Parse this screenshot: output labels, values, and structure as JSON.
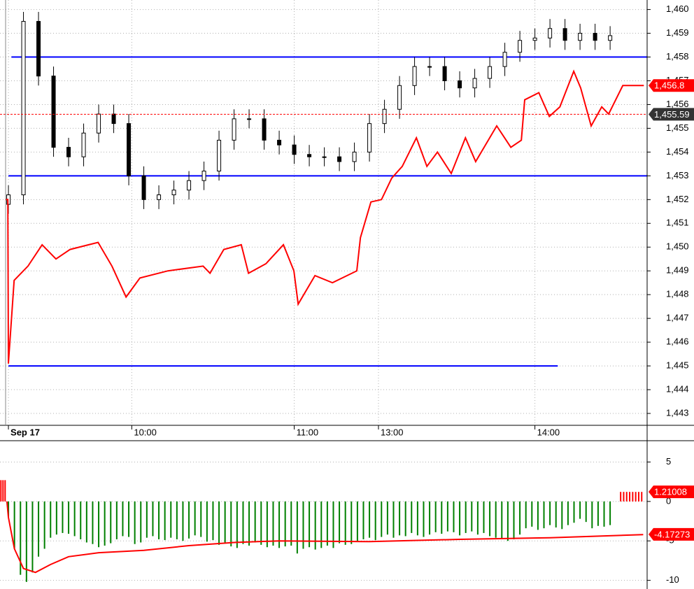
{
  "chart_data": [
    {
      "type": "candlestick",
      "x": [
        0,
        5,
        10,
        15,
        20,
        25,
        30,
        35,
        40,
        45,
        50,
        55,
        60,
        65,
        70,
        75,
        80,
        85,
        90,
        95,
        100,
        105,
        110,
        115,
        120,
        125,
        130,
        135,
        140,
        145,
        150,
        155,
        160,
        165,
        170,
        175,
        180,
        185,
        190,
        195,
        200
      ],
      "open": [
        1451.8,
        1452.2,
        1459.5,
        1457.2,
        1454.2,
        1453.8,
        1454.8,
        1455.6,
        1455.2,
        1453.0,
        1452.0,
        1452.2,
        1452.4,
        1452.8,
        1453.2,
        1454.5,
        1455.4,
        1455.4,
        1454.5,
        1454.3,
        1453.9,
        1453.8,
        1453.8,
        1453.6,
        1454.0,
        1455.2,
        1455.8,
        1456.8,
        1457.6,
        1457.6,
        1457.0,
        1456.7,
        1457.1,
        1457.6,
        1458.2,
        1458.7,
        1458.8,
        1459.2,
        1458.7,
        1459.0,
        1458.7
      ],
      "high": [
        1452.6,
        1459.9,
        1459.9,
        1457.6,
        1454.6,
        1455.2,
        1456.0,
        1456.0,
        1455.6,
        1453.4,
        1452.6,
        1452.8,
        1453.2,
        1453.6,
        1454.9,
        1455.8,
        1455.8,
        1455.8,
        1454.9,
        1454.7,
        1454.3,
        1454.2,
        1454.2,
        1454.4,
        1455.6,
        1456.2,
        1457.2,
        1458.0,
        1458.0,
        1458.0,
        1457.4,
        1457.5,
        1458.0,
        1458.6,
        1459.1,
        1459.2,
        1459.6,
        1459.6,
        1459.4,
        1459.4,
        1459.3
      ],
      "low": [
        1451.4,
        1451.8,
        1456.8,
        1453.8,
        1453.4,
        1453.4,
        1454.4,
        1454.8,
        1452.6,
        1451.6,
        1451.6,
        1451.8,
        1452.0,
        1452.4,
        1452.8,
        1454.1,
        1455.0,
        1454.1,
        1453.9,
        1453.5,
        1453.4,
        1453.4,
        1453.2,
        1453.2,
        1453.6,
        1454.8,
        1455.4,
        1456.4,
        1457.2,
        1456.6,
        1456.3,
        1456.3,
        1456.7,
        1457.2,
        1457.8,
        1458.3,
        1458.4,
        1458.3,
        1458.3,
        1458.3,
        1458.3
      ],
      "close": [
        1452.2,
        1459.5,
        1457.2,
        1454.2,
        1453.8,
        1454.8,
        1455.6,
        1455.2,
        1453.0,
        1452.0,
        1452.2,
        1452.4,
        1452.8,
        1453.2,
        1454.5,
        1455.4,
        1455.4,
        1454.5,
        1454.3,
        1453.9,
        1453.8,
        1453.8,
        1453.6,
        1454.0,
        1455.2,
        1455.8,
        1456.8,
        1457.6,
        1457.6,
        1457.0,
        1456.7,
        1457.1,
        1457.6,
        1458.2,
        1458.7,
        1458.8,
        1459.2,
        1458.7,
        1459.0,
        1458.7,
        1458.9
      ],
      "up_color": "#ffffff",
      "down_color": "#000000",
      "xlim": [
        -2.8,
        212.3
      ],
      "ylim": [
        1442.5,
        1460.4
      ],
      "xticks": [
        {
          "value": 0,
          "label": "Sep 17"
        },
        {
          "value": 41,
          "label": "10:00"
        },
        {
          "value": 95,
          "label": "11:00"
        },
        {
          "value": 123,
          "label": "13:00"
        },
        {
          "value": 175,
          "label": "14:00"
        }
      ],
      "yticks": [
        {
          "value": 1443,
          "label": "1,443"
        },
        {
          "value": 1444,
          "label": "1,444"
        },
        {
          "value": 1445,
          "label": "1,445"
        },
        {
          "value": 1446,
          "label": "1,446"
        },
        {
          "value": 1447,
          "label": "1,447"
        },
        {
          "value": 1448,
          "label": "1,448"
        },
        {
          "value": 1449,
          "label": "1,449"
        },
        {
          "value": 1450,
          "label": "1,450"
        },
        {
          "value": 1451,
          "label": "1,451"
        },
        {
          "value": 1452,
          "label": "1,452"
        },
        {
          "value": 1453,
          "label": "1,453"
        },
        {
          "value": 1454,
          "label": "1,454"
        },
        {
          "value": 1455,
          "label": "1,455"
        },
        {
          "value": 1456,
          "label": "1,456"
        },
        {
          "value": 1457,
          "label": "1,457"
        },
        {
          "value": 1458,
          "label": "1,458"
        },
        {
          "value": 1459,
          "label": "1,459"
        },
        {
          "value": 1460,
          "label": "1,460"
        }
      ],
      "grid": true,
      "levels": [
        {
          "value": 1458,
          "x": [
            1,
            212.3
          ],
          "color": "#0000ff"
        },
        {
          "value": 1453,
          "x": [
            0,
            212.3
          ],
          "color": "#0000ff"
        },
        {
          "value": 1445,
          "x": [
            0,
            182.6
          ],
          "color": "#0000ff"
        }
      ],
      "series": [
        {
          "color": "#ff0000",
          "x": [
            -1,
            -0.2,
            0,
            1.9,
            6.5,
            11.2,
            15.8,
            20.5,
            29.8,
            34.4,
            39.1,
            43.7,
            53,
            64.7,
            67,
            71.6,
            77.4,
            79.8,
            85.6,
            91.4,
            94.9,
            96.3,
            101.9,
            107.7,
            115.8,
            117,
            120.5,
            124,
            127.4,
            130.9,
            135.6,
            139.1,
            142.6,
            147.2,
            151.9,
            155.3,
            162.3,
            167,
            170.5,
            171.6,
            176.3,
            179.8,
            183.3,
            187.9,
            190.2,
            193.7,
            197.2,
            199.5,
            204.2,
            211.2
          ],
          "values": [
            1452.0,
            1452.0,
            1445.1,
            1448.6,
            1449.2,
            1450.1,
            1449.5,
            1449.9,
            1450.2,
            1449.2,
            1447.9,
            1448.7,
            1449.0,
            1449.2,
            1448.9,
            1449.9,
            1450.1,
            1448.9,
            1449.3,
            1450.1,
            1449.0,
            1447.6,
            1448.8,
            1448.5,
            1449.0,
            1450.4,
            1451.9,
            1452.0,
            1452.9,
            1453.4,
            1454.6,
            1453.4,
            1454.0,
            1453.1,
            1454.6,
            1453.6,
            1455.1,
            1454.2,
            1454.5,
            1456.2,
            1456.5,
            1455.5,
            1455.9,
            1457.4,
            1456.7,
            1455.1,
            1455.9,
            1455.6,
            1456.8,
            1456.8
          ]
        }
      ],
      "price_labels": [
        {
          "value": 1456.8,
          "label": "1,456.8",
          "color": "#ff0000"
        },
        {
          "value": 1455.59,
          "label": "1,455.59",
          "color": "#333333"
        }
      ]
    },
    {
      "type": "bar",
      "xlim": [
        -2.8,
        212.3
      ],
      "ylim": [
        -11.1,
        7.7
      ],
      "yticks": [
        5,
        0,
        -5,
        -10
      ],
      "grid": true,
      "series": [
        {
          "type": "bar",
          "color": "#008000",
          "x": [
            0,
            2,
            4,
            6,
            8,
            10,
            12,
            14,
            16,
            18,
            20,
            22,
            24,
            26,
            28,
            30,
            32,
            34,
            36,
            38,
            40,
            42,
            44,
            46,
            48,
            50,
            52,
            54,
            56,
            58,
            60,
            62,
            64,
            66,
            68,
            70,
            72,
            74,
            76,
            78,
            80,
            82,
            84,
            86,
            88,
            90,
            92,
            94,
            96,
            98,
            100,
            102,
            104,
            106,
            108,
            110,
            112,
            114,
            116,
            118,
            120,
            122,
            124,
            126,
            128,
            130,
            132,
            134,
            136,
            138,
            140,
            142,
            144,
            146,
            148,
            150,
            152,
            154,
            156,
            158,
            160,
            162,
            164,
            166,
            168,
            170,
            172,
            174,
            176,
            178,
            180,
            182,
            184,
            186,
            188,
            190,
            192,
            194,
            196,
            198,
            200
          ],
          "values": [
            -2,
            -6,
            -9.3,
            -10.2,
            -9,
            -7,
            -6,
            -4.6,
            -4.2,
            -4,
            -4.1,
            -4.4,
            -4.8,
            -5.2,
            -5.4,
            -5.8,
            -5.6,
            -5.3,
            -4.8,
            -4.4,
            -4.5,
            -5.4,
            -5.2,
            -4.6,
            -4.4,
            -4.8,
            -4.9,
            -4.6,
            -4.8,
            -5.0,
            -4.7,
            -4.3,
            -4.5,
            -5.1,
            -4.9,
            -5.5,
            -5.3,
            -5.7,
            -5.9,
            -5.4,
            -5.6,
            -5.2,
            -5.5,
            -5.8,
            -5.6,
            -5.9,
            -5.7,
            -5.6,
            -6.6,
            -6.0,
            -5.8,
            -6.1,
            -5.9,
            -5.6,
            -5.9,
            -5.3,
            -5.5,
            -5.4,
            -5.0,
            -4.8,
            -4.6,
            -4.9,
            -4.5,
            -4.2,
            -4.6,
            -4.3,
            -4.4,
            -4.0,
            -4.3,
            -4.5,
            -4.2,
            -3.9,
            -4.1,
            -3.8,
            -3.9,
            -4.3,
            -4.0,
            -3.8,
            -4.2,
            -4.0,
            -4.4,
            -4.6,
            -4.7,
            -5.0,
            -4.8,
            -4.2,
            -3.4,
            -3.2,
            -3.6,
            -3.4,
            -3.0,
            -3.3,
            -3.5,
            -3.0,
            -2.7,
            -2.2,
            -2.6,
            -3.4,
            -3.1,
            -3.2,
            -3.0
          ]
        },
        {
          "type": "bar",
          "color": "#ff0000",
          "x": [
            -2.5,
            -1.8,
            -1.1,
            203.5,
            204.5,
            205.5,
            206.5,
            207.5,
            208.5,
            209.5,
            210.5
          ],
          "values": [
            2.7,
            2.7,
            2.7,
            1.21,
            1.21,
            1.21,
            1.21,
            1.21,
            1.21,
            1.21,
            1.21
          ]
        },
        {
          "type": "line",
          "color": "#ff0000",
          "x": [
            -0.5,
            0,
            2,
            5,
            9,
            14,
            20,
            30,
            45,
            60,
            75,
            90,
            120,
            150,
            180,
            211
          ],
          "values": [
            0,
            -2,
            -6,
            -8.5,
            -9,
            -8,
            -7,
            -6.5,
            -6.2,
            -5.6,
            -5.2,
            -5.0,
            -5.1,
            -4.8,
            -4.6,
            -4.2
          ]
        }
      ],
      "price_labels": [
        {
          "value": 1.21008,
          "label": "1.21008",
          "color": "#ff0000"
        },
        {
          "value": -4.17273,
          "label": "-4.17273",
          "color": "#ff0000"
        }
      ]
    }
  ]
}
